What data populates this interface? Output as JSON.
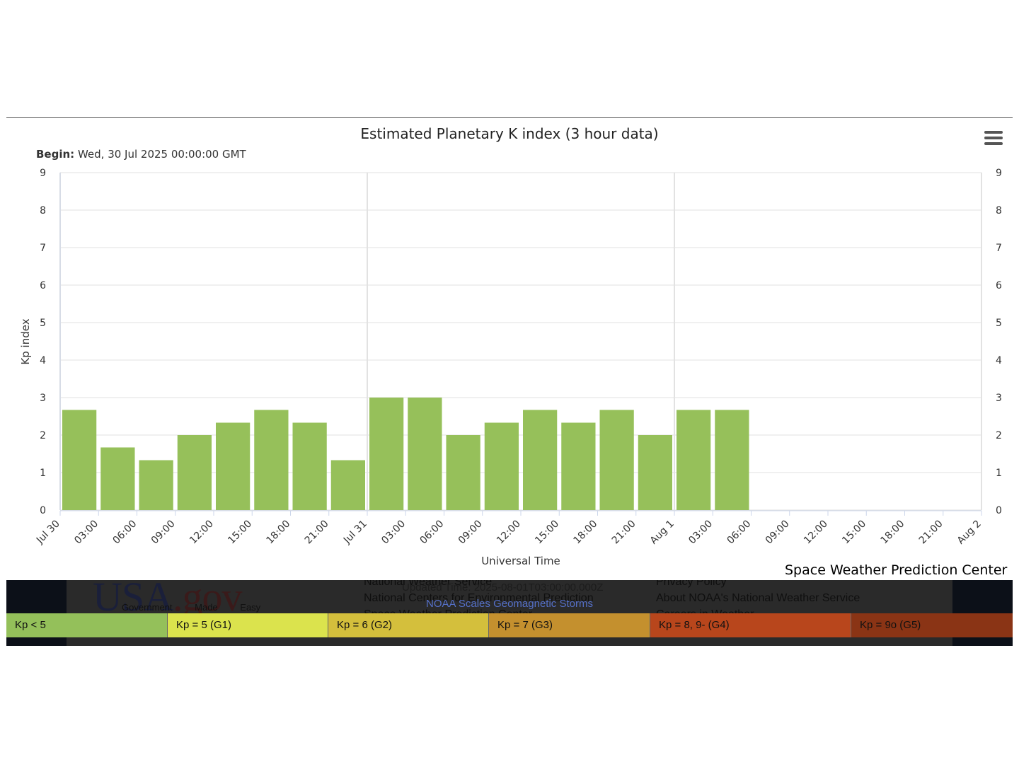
{
  "chart_data": {
    "type": "bar",
    "title": "Estimated Planetary K index (3 hour data)",
    "begin_label": "Begin:",
    "begin_value": "Wed, 30 Jul 2025 00:00:00 GMT",
    "xlabel": "Universal Time",
    "ylabel": "Kp index",
    "ylim": [
      0,
      9
    ],
    "yticks": [
      "0",
      "1",
      "2",
      "3",
      "4",
      "5",
      "6",
      "7",
      "8",
      "9"
    ],
    "x_tick_labels": [
      "Jul 30",
      "03:00",
      "06:00",
      "09:00",
      "12:00",
      "15:00",
      "18:00",
      "21:00",
      "Jul 31",
      "03:00",
      "06:00",
      "09:00",
      "12:00",
      "15:00",
      "18:00",
      "21:00",
      "Aug 1",
      "03:00",
      "06:00",
      "09:00",
      "12:00",
      "15:00",
      "18:00",
      "21:00",
      "Aug 2"
    ],
    "categories": [
      "Jul 30 00:00",
      "Jul 30 03:00",
      "Jul 30 06:00",
      "Jul 30 09:00",
      "Jul 30 12:00",
      "Jul 30 15:00",
      "Jul 30 18:00",
      "Jul 30 21:00",
      "Jul 31 00:00",
      "Jul 31 03:00",
      "Jul 31 06:00",
      "Jul 31 09:00",
      "Jul 31 12:00",
      "Jul 31 15:00",
      "Jul 31 18:00",
      "Jul 31 21:00",
      "Aug 1 00:00",
      "Aug 1 03:00"
    ],
    "values": [
      2.67,
      1.67,
      1.33,
      2.0,
      2.33,
      2.67,
      2.33,
      1.33,
      3.0,
      3.0,
      2.0,
      2.33,
      2.67,
      2.33,
      2.67,
      2.0,
      2.67,
      2.67
    ],
    "bar_color": "#96c05a",
    "grid": true,
    "legend": "none"
  },
  "credit": "Space Weather Prediction Center",
  "menu_icon": "hamburger-menu-icon",
  "footer": {
    "logo_usa": "USA",
    "logo_gov": ".gov",
    "logo_tagline": "Government Made Easy",
    "links_left": [
      "National Weather Service",
      "National Centers for Environmental Prediction",
      "Space Weather Prediction Center"
    ],
    "links_right": [
      "Privacy Policy",
      "About NOAA's National Weather Service",
      "Careers in Weather"
    ],
    "updated": "Updated Time: 2025-08-01T03:00:00.000Z",
    "scales_title": "NOAA Scales Geomagnetic Storms"
  },
  "scale_bar": [
    {
      "label": "Kp < 5",
      "color": "#94c05a"
    },
    {
      "label": "Kp = 5 (G1)",
      "color": "#dbe34d"
    },
    {
      "label": "Kp = 6 (G2)",
      "color": "#d4bf3c"
    },
    {
      "label": "Kp = 7 (G3)",
      "color": "#c4902e"
    },
    {
      "label": "Kp = 8, 9- (G4)",
      "color": "#b8461c"
    },
    {
      "label": "Kp = 9o (G5)",
      "color": "#8a3415"
    }
  ]
}
